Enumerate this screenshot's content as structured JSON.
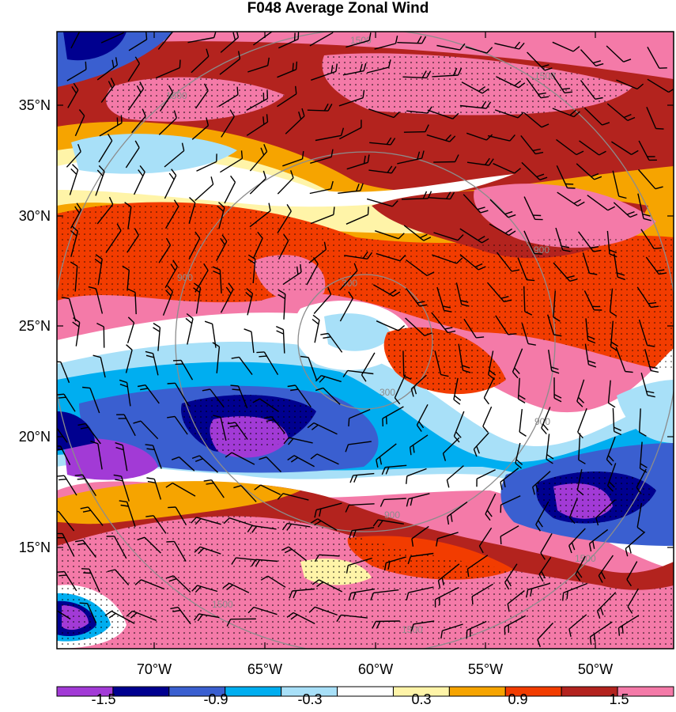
{
  "title": "F048 Average Zonal Wind",
  "lat_labels": [
    "35°N",
    "30°N",
    "25°N",
    "20°N",
    "15°N"
  ],
  "lon_labels": [
    "70°W",
    "65°W",
    "60°W",
    "55°W",
    "50°W"
  ],
  "range_rings": [
    "300",
    "900",
    "1500"
  ],
  "colorbar": {
    "ticks": [
      "-1.5",
      "-0.9",
      "-0.3",
      "0.3",
      "0.9",
      "1.5"
    ],
    "colors": [
      "#a23ad6",
      "#00008f",
      "#3a5fd0",
      "#00aef0",
      "#a8e0f8",
      "#ffffff",
      "#fff4a8",
      "#f6a400",
      "#f23c00",
      "#b3231e",
      "#f47aa8"
    ]
  }
}
